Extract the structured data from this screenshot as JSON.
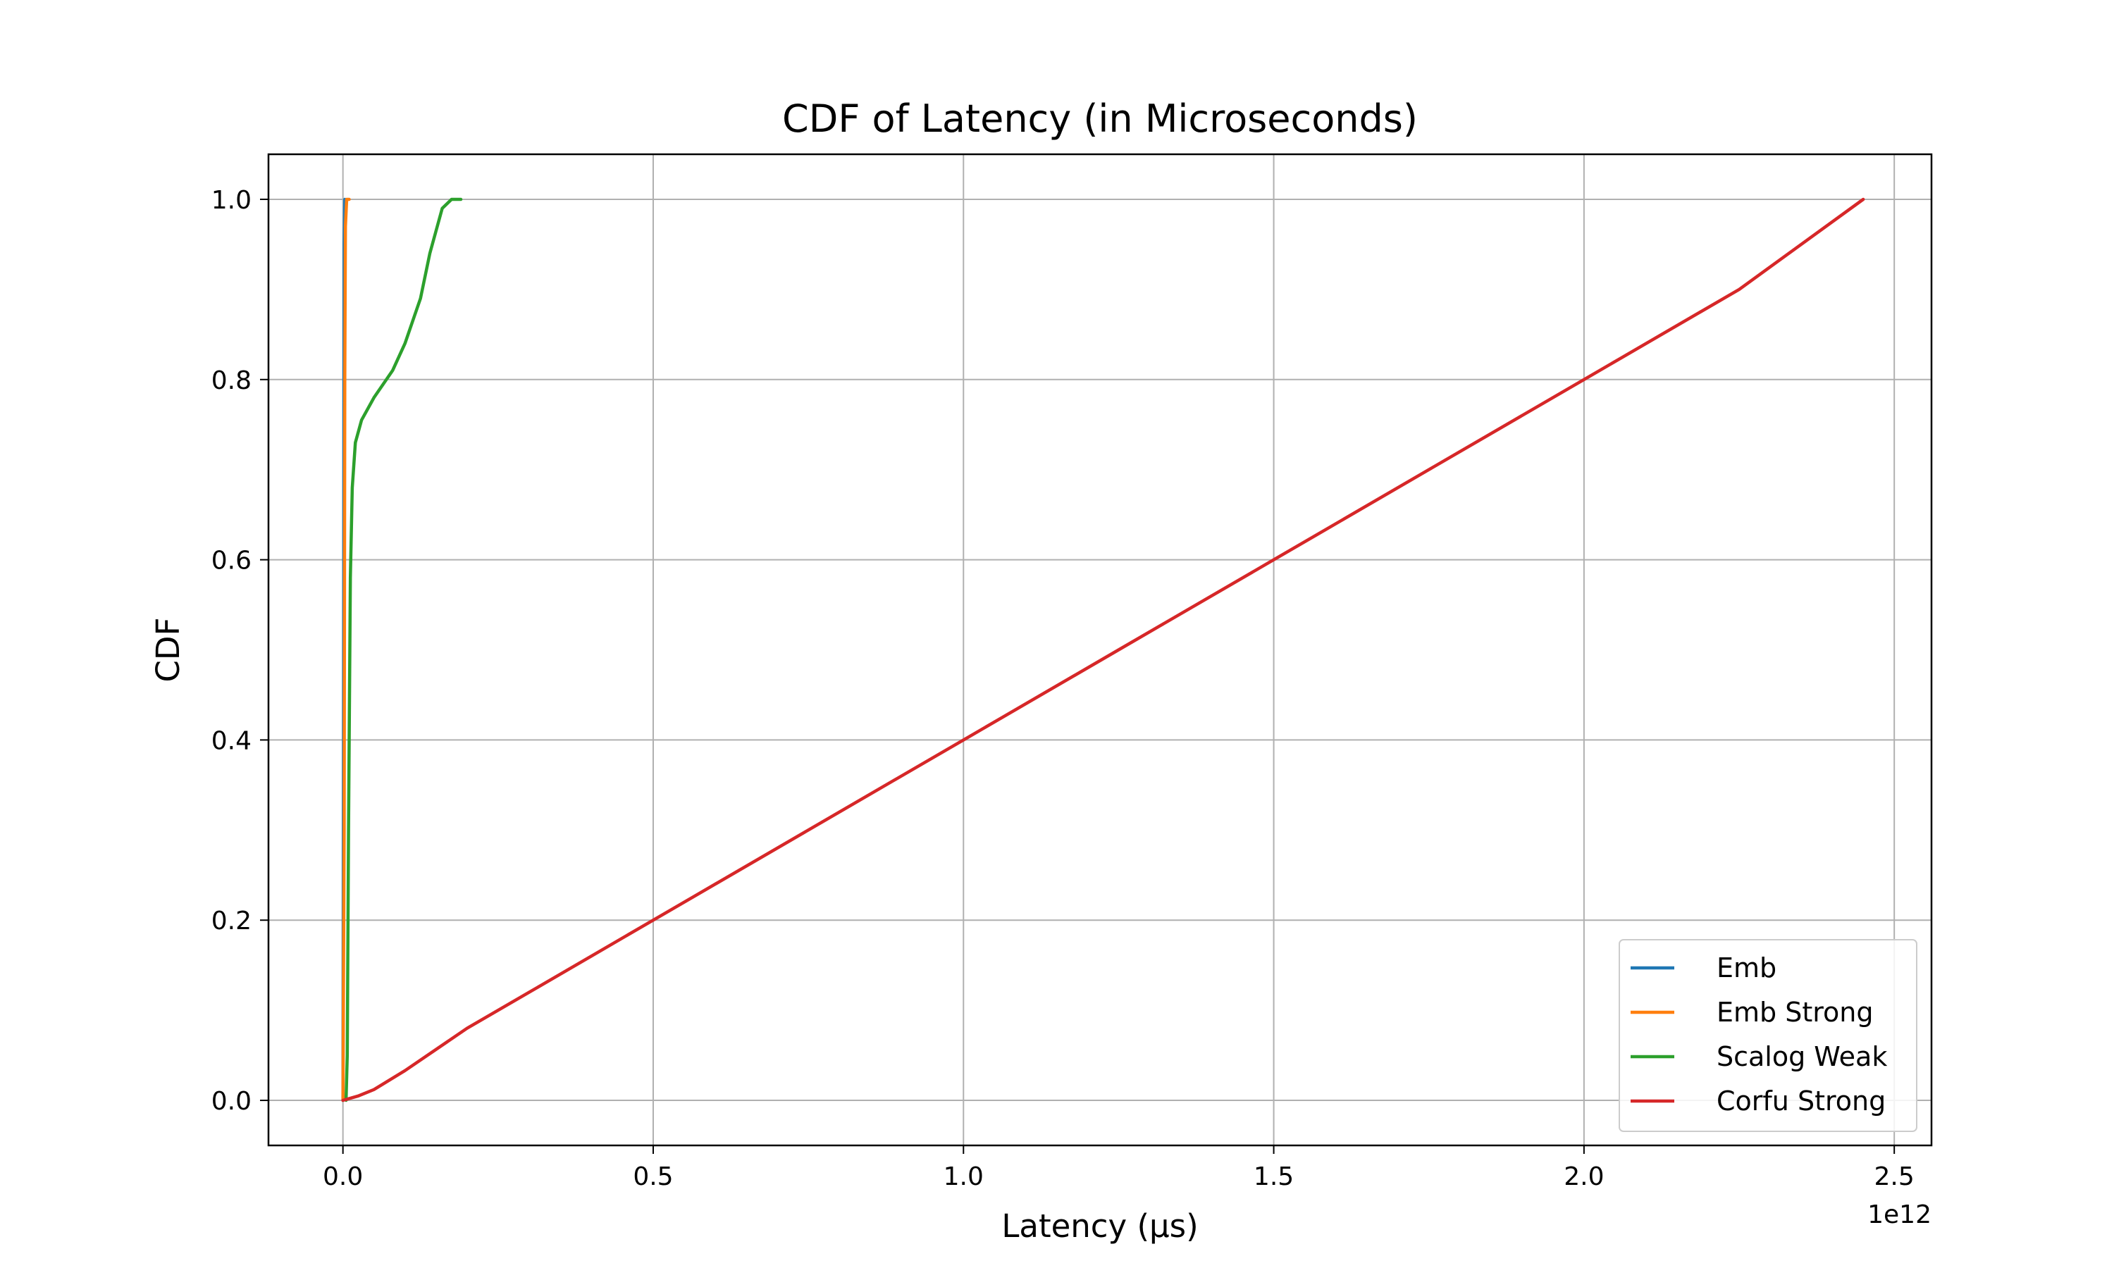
{
  "chart_data": {
    "type": "line",
    "title": "CDF of Latency (in Microseconds)",
    "xlabel": "Latency (µs)",
    "ylabel": "CDF",
    "x_offset_text": "1e12",
    "xlim": [
      -0.12,
      2.56
    ],
    "ylim": [
      -0.05,
      1.05
    ],
    "xticks": [
      0.0,
      0.5,
      1.0,
      1.5,
      2.0,
      2.5
    ],
    "xtick_labels": [
      "0.0",
      "0.5",
      "1.0",
      "1.5",
      "2.0",
      "2.5"
    ],
    "yticks": [
      0.0,
      0.2,
      0.4,
      0.6,
      0.8,
      1.0
    ],
    "ytick_labels": [
      "0.0",
      "0.2",
      "0.4",
      "0.6",
      "0.8",
      "1.0"
    ],
    "grid": true,
    "legend_position": "lower-right",
    "series": [
      {
        "name": "Emb",
        "color": "#1f77b4",
        "points": [
          [
            0.0,
            0.0
          ],
          [
            0.001,
            0.5
          ],
          [
            0.002,
            0.95
          ],
          [
            0.003,
            1.0
          ]
        ]
      },
      {
        "name": "Emb Strong",
        "color": "#ff7f0e",
        "points": [
          [
            0.0,
            0.0
          ],
          [
            0.002,
            0.3
          ],
          [
            0.003,
            0.8
          ],
          [
            0.004,
            0.97
          ],
          [
            0.006,
            1.0
          ],
          [
            0.01,
            1.0
          ]
        ]
      },
      {
        "name": "Scalog Weak",
        "color": "#2ca02c",
        "points": [
          [
            0.005,
            0.0
          ],
          [
            0.007,
            0.05
          ],
          [
            0.009,
            0.3
          ],
          [
            0.012,
            0.58
          ],
          [
            0.015,
            0.68
          ],
          [
            0.02,
            0.73
          ],
          [
            0.03,
            0.755
          ],
          [
            0.05,
            0.78
          ],
          [
            0.08,
            0.81
          ],
          [
            0.09,
            0.825
          ],
          [
            0.1,
            0.84
          ],
          [
            0.115,
            0.87
          ],
          [
            0.125,
            0.89
          ],
          [
            0.14,
            0.94
          ],
          [
            0.15,
            0.965
          ],
          [
            0.16,
            0.99
          ],
          [
            0.175,
            1.0
          ],
          [
            0.19,
            1.0
          ]
        ]
      },
      {
        "name": "Corfu Strong",
        "color": "#d62728",
        "points": [
          [
            0.0,
            0.0
          ],
          [
            0.025,
            0.005
          ],
          [
            0.05,
            0.012
          ],
          [
            0.1,
            0.033
          ],
          [
            0.2,
            0.08
          ],
          [
            0.3,
            0.12
          ],
          [
            0.4,
            0.16
          ],
          [
            0.5,
            0.2
          ],
          [
            0.75,
            0.3
          ],
          [
            1.0,
            0.4
          ],
          [
            1.25,
            0.5
          ],
          [
            1.5,
            0.6
          ],
          [
            1.75,
            0.7
          ],
          [
            2.0,
            0.8
          ],
          [
            2.25,
            0.9
          ],
          [
            2.45,
            1.0
          ]
        ]
      }
    ]
  }
}
